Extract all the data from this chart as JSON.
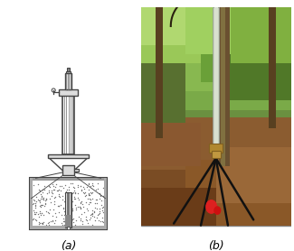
{
  "label_a": "(a)",
  "label_b": "(b)",
  "bg_color": "#ffffff",
  "fig_width": 3.25,
  "fig_height": 2.78,
  "dpi": 100,
  "text_color": "#000000",
  "label_fontsize": 9,
  "gc": "#444444",
  "wc": "#ffffff",
  "photo_colors": {
    "sky_green": "#7a9e5a",
    "foliage1": "#6a9040",
    "foliage2": "#8aaa50",
    "foliage3": "#5a8030",
    "ground1": "#8b6040",
    "ground2": "#7a5030",
    "ground3": "#6a4020",
    "trunk": "#5a4020",
    "tube_color": "#c0c8b0",
    "tripod_color": "#1a1a1a",
    "hub_color": "#8a7030",
    "red_part": "#cc2020"
  }
}
